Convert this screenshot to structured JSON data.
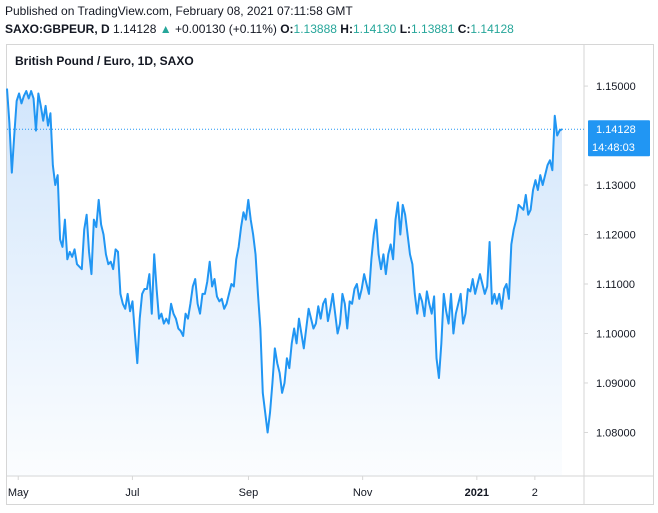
{
  "header": {
    "published": "Published on TradingView.com, February 08, 2021 07:11:58 GMT",
    "symbol": "SAXO:GBPEUR, D",
    "last": "1.14128",
    "change": "+0.00130 (+0.11%)",
    "open_label": "O:",
    "open": "1.13888",
    "high_label": "H:",
    "high": "1.14130",
    "low_label": "L:",
    "low": "1.13881",
    "close_label": "C:",
    "close": "1.14128"
  },
  "colors": {
    "line": "#2196f3",
    "fill_top": "#cfe4fb",
    "tag_bg": "#2196f3",
    "up": "#26a69a"
  },
  "chart_data": {
    "type": "area",
    "title": "British Pound / Euro, 1D, SAXO",
    "ylim": [
      1.0712,
      1.1583
    ],
    "y_ticks": [
      "1.08000",
      "1.09000",
      "1.10000",
      "1.11000",
      "1.12000",
      "1.13000",
      "1.15000"
    ],
    "x_ticks": [
      {
        "label": "May",
        "day": 6
      },
      {
        "label": "Jul",
        "day": 67
      },
      {
        "label": "Sep",
        "day": 129
      },
      {
        "label": "Nov",
        "day": 190
      },
      {
        "label": "2021",
        "day": 251,
        "bold": true
      },
      {
        "label": "2",
        "day": 282
      }
    ],
    "x_range": [
      0,
      300
    ],
    "last_price": "1.14128",
    "countdown": "14:48:03",
    "values": [
      1.1495,
      1.1425,
      1.1325,
      1.14,
      1.147,
      1.1485,
      1.1465,
      1.148,
      1.149,
      1.1475,
      1.149,
      1.1475,
      1.141,
      1.1485,
      1.146,
      1.143,
      1.146,
      1.142,
      1.1445,
      1.134,
      1.13,
      1.132,
      1.119,
      1.1175,
      1.123,
      1.115,
      1.1165,
      1.1155,
      1.117,
      1.114,
      1.1135,
      1.113,
      1.121,
      1.124,
      1.1165,
      1.112,
      1.123,
      1.1215,
      1.127,
      1.122,
      1.12,
      1.116,
      1.114,
      1.1145,
      1.113,
      1.117,
      1.1165,
      1.108,
      1.106,
      1.105,
      1.108,
      1.1045,
      1.1065,
      1.1,
      1.094,
      1.103,
      1.108,
      1.109,
      1.109,
      1.112,
      1.104,
      1.116,
      1.109,
      1.103,
      1.104,
      1.102,
      1.103,
      1.102,
      1.106,
      1.104,
      1.103,
      1.101,
      1.1005,
      1.0995,
      1.104,
      1.103,
      1.106,
      1.1095,
      1.111,
      1.106,
      1.104,
      1.108,
      1.108,
      1.1105,
      1.1145,
      1.1095,
      1.111,
      1.1075,
      1.1065,
      1.107,
      1.105,
      1.106,
      1.108,
      1.11,
      1.1095,
      1.115,
      1.1175,
      1.1215,
      1.1245,
      1.123,
      1.127,
      1.123,
      1.12,
      1.116,
      1.108,
      1.101,
      1.088,
      1.084,
      1.08,
      1.084,
      1.09,
      1.097,
      1.094,
      1.092,
      1.088,
      1.09,
      1.095,
      1.093,
      1.098,
      1.101,
      1.098,
      1.103,
      1.1,
      1.097,
      1.101,
      1.105,
      1.103,
      1.101,
      1.102,
      1.1055,
      1.103,
      1.106,
      1.107,
      1.1025,
      1.105,
      1.108,
      1.104,
      1.1,
      1.102,
      1.108,
      1.106,
      1.101,
      1.1065,
      1.106,
      1.109,
      1.11,
      1.107,
      1.109,
      1.112,
      1.11,
      1.108,
      1.115,
      1.12,
      1.123,
      1.116,
      1.113,
      1.116,
      1.112,
      1.116,
      1.118,
      1.115,
      1.123,
      1.1265,
      1.12,
      1.126,
      1.124,
      1.12,
      1.116,
      1.114,
      1.108,
      1.104,
      1.108,
      1.1065,
      1.1035,
      1.1085,
      1.106,
      1.104,
      1.1075,
      1.095,
      1.091,
      1.098,
      1.108,
      1.1045,
      1.102,
      1.108,
      1.1,
      1.104,
      1.106,
      1.108,
      1.102,
      1.104,
      1.109,
      1.1085,
      1.111,
      1.108,
      1.11,
      1.112,
      1.11,
      1.108,
      1.1095,
      1.1185,
      1.106,
      1.108,
      1.106,
      1.108,
      1.105,
      1.109,
      1.11,
      1.107,
      1.118,
      1.121,
      1.123,
      1.126,
      1.1255,
      1.125,
      1.128,
      1.124,
      1.125,
      1.129,
      1.131,
      1.129,
      1.132,
      1.13,
      1.132,
      1.134,
      1.135,
      1.133,
      1.144,
      1.14,
      1.141,
      1.1413
    ]
  }
}
